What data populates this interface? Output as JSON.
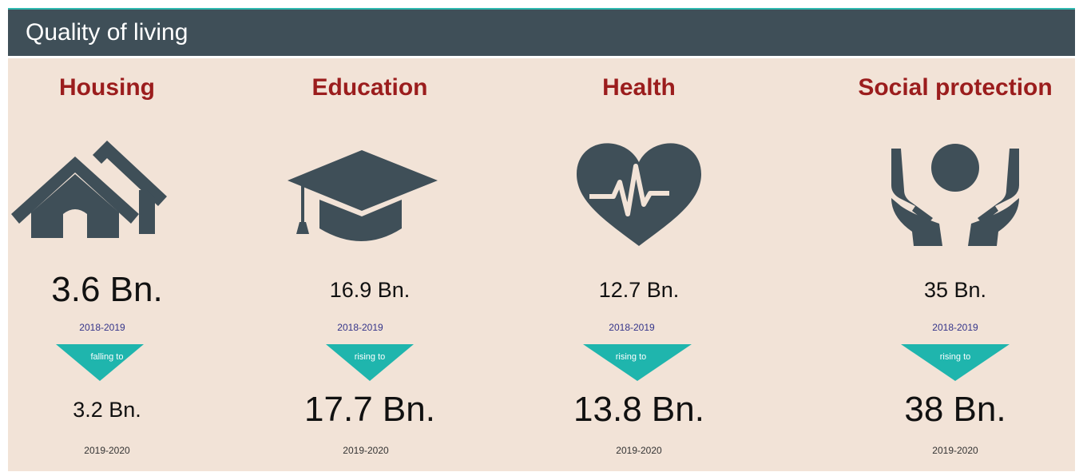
{
  "header": {
    "title": "Quality of living"
  },
  "columns": [
    {
      "name": "Housing",
      "before": "3.6 Bn.",
      "before_period": "2018-2019",
      "change": "falling to",
      "after": "3.2 Bn.",
      "after_period": "2019-2020"
    },
    {
      "name": "Education",
      "before": "16.9 Bn.",
      "before_period": "2018-2019",
      "change": "rising to",
      "after": "17.7 Bn.",
      "after_period": "2019-2020"
    },
    {
      "name": "Health",
      "before": "12.7 Bn.",
      "before_period": "2018-2019",
      "change": "rising to",
      "after": "13.8 Bn.",
      "after_period": "2019-2020"
    },
    {
      "name": "Social protection",
      "before": "35 Bn.",
      "before_period": "2018-2019",
      "change": "rising to",
      "after": "38 Bn.",
      "after_period": "2019-2020"
    }
  ]
}
